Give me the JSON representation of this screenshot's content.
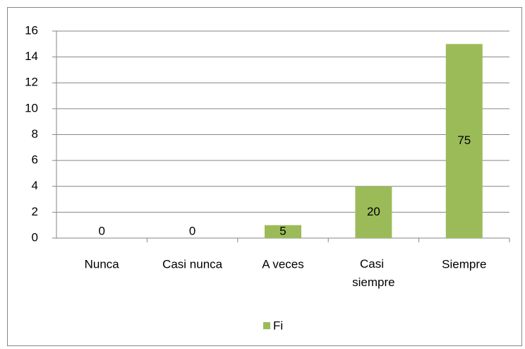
{
  "chart_data": {
    "type": "bar",
    "categories": [
      "Nunca",
      "Casi nunca",
      "A veces",
      "Casi siempre",
      "Siempre"
    ],
    "series": [
      {
        "name": "Fi",
        "color": "#9bbb59",
        "values": [
          0,
          0,
          1,
          4,
          15
        ],
        "value_labels": [
          "0",
          "0",
          "5",
          "20",
          "75"
        ]
      }
    ],
    "ylim": [
      0,
      16
    ],
    "yticks": [
      0,
      2,
      4,
      6,
      8,
      10,
      12,
      14,
      16
    ],
    "grid": true,
    "legend": "bottom"
  }
}
